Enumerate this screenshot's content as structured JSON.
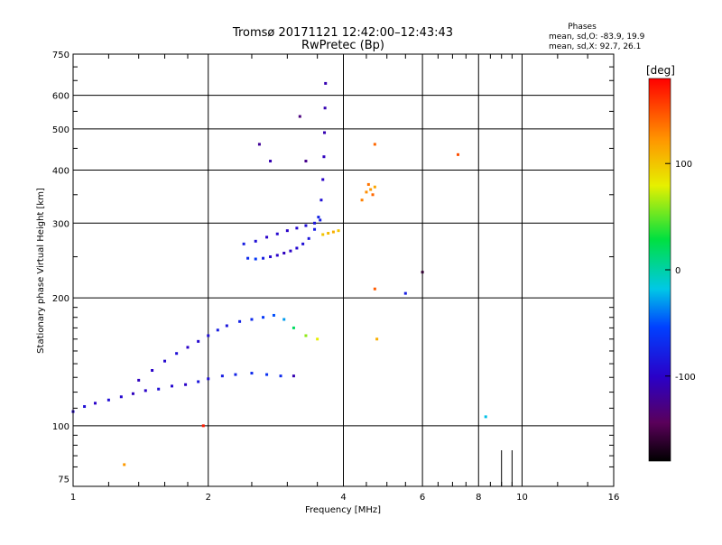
{
  "chart_data": {
    "type": "scatter",
    "title": "Tromsø 20171121 12:42:00–12:43:43",
    "subtitle": "RwPretec (Bp)",
    "xlabel": "Frequency [MHz]",
    "ylabel": "Stationary phase Virtual Height [km]",
    "x_scale": "log2",
    "y_scale": "log",
    "xlim": [
      1,
      16
    ],
    "ylim": [
      72,
      750
    ],
    "x_ticks": [
      1,
      2,
      4,
      6,
      8,
      10,
      16
    ],
    "x_ticklabels": [
      "1",
      "2",
      "4",
      "6",
      "8",
      "10",
      "16"
    ],
    "y_ticks": [
      75,
      100,
      200,
      300,
      400,
      500,
      600,
      750
    ],
    "y_ticklabels": [
      "75",
      "100",
      "200",
      "300",
      "400",
      "500",
      "600",
      "750"
    ],
    "grid": true,
    "phase_stats": {
      "heading": "Phases",
      "line_o": "mean, sd,O:  -83.9, 19.9",
      "line_x": "mean, sd,X:  92.7, 26.1"
    },
    "colorbar": {
      "label": "[deg]",
      "min": -180,
      "max": 180,
      "ticks": [
        100,
        0,
        -100
      ],
      "ticklabels": [
        "100",
        "0",
        "-100"
      ],
      "colormap": "rainbow: black-purple-blue-cyan-green-yellow-orange-red"
    },
    "traces": [
      {
        "name": "",
        "x": [
          1.0,
          1.06,
          1.12,
          1.2,
          1.28,
          1.36,
          1.45,
          1.55,
          1.66,
          1.78,
          1.9,
          2.0,
          2.15,
          2.3,
          2.5,
          2.7,
          2.9,
          3.1
        ],
        "y": [
          108,
          111,
          113,
          115,
          117,
          119,
          121,
          122,
          124,
          125,
          127,
          129,
          131,
          132,
          133,
          132,
          131,
          131
        ],
        "phase": [
          -95,
          -90,
          -100,
          -90,
          -95,
          -105,
          -100,
          -90,
          -95,
          -100,
          -85,
          -90,
          -80,
          -75,
          -70,
          -65,
          -70,
          -110
        ]
      },
      {
        "name": "",
        "x": [
          1.4,
          1.5,
          1.6,
          1.7,
          1.8,
          1.9,
          2.0,
          2.1,
          2.2,
          2.35,
          2.5,
          2.65,
          2.8,
          2.95,
          3.1,
          3.3,
          3.5
        ],
        "y": [
          128,
          135,
          142,
          148,
          153,
          158,
          163,
          168,
          172,
          176,
          178,
          180,
          182,
          178,
          170,
          163,
          160
        ],
        "phase": [
          -105,
          -100,
          -95,
          -90,
          -100,
          -95,
          -90,
          -80,
          -85,
          -75,
          -70,
          -60,
          -50,
          -30,
          20,
          60,
          80
        ]
      },
      {
        "name": "",
        "x": [
          2.45,
          2.55,
          2.65,
          2.75,
          2.85,
          2.95,
          3.05,
          3.15,
          3.25,
          3.35,
          3.45,
          3.52,
          3.57,
          3.6,
          3.62,
          3.63,
          3.64,
          3.65
        ],
        "y": [
          248,
          247,
          248,
          250,
          252,
          255,
          258,
          262,
          268,
          276,
          290,
          310,
          340,
          380,
          430,
          490,
          560,
          640
        ],
        "phase": [
          -70,
          -60,
          -80,
          -95,
          -100,
          -105,
          -100,
          -95,
          -90,
          -85,
          -80,
          -75,
          -90,
          -100,
          -105,
          -110,
          -110,
          -110
        ]
      },
      {
        "name": "",
        "x": [
          2.4,
          2.55,
          2.7,
          2.85,
          3.0,
          3.15,
          3.3,
          3.45,
          3.55
        ],
        "y": [
          268,
          272,
          278,
          283,
          288,
          292,
          296,
          300,
          305
        ],
        "phase": [
          -80,
          -90,
          -100,
          -95,
          -100,
          -95,
          -90,
          -85,
          -80
        ]
      },
      {
        "name": "",
        "x": [
          3.6,
          3.7,
          3.8,
          3.9,
          4.4,
          4.5,
          4.55,
          4.6,
          4.65,
          4.7
        ],
        "y": [
          282,
          284,
          286,
          288,
          340,
          355,
          370,
          360,
          350,
          365
        ],
        "phase": [
          100,
          105,
          110,
          100,
          130,
          125,
          135,
          120,
          140,
          115
        ]
      },
      {
        "name": "",
        "x": [
          1.3,
          1.95,
          2.6,
          2.75,
          3.2,
          3.3,
          4.7,
          4.7,
          4.75,
          5.5,
          6.0,
          7.2,
          8.3
        ],
        "y": [
          81,
          100,
          460,
          420,
          535,
          420,
          460,
          210,
          160,
          205,
          230,
          435,
          105
        ],
        "phase": [
          120,
          170,
          -120,
          -110,
          -130,
          -125,
          140,
          145,
          110,
          -80,
          -160,
          150,
          -20
        ]
      }
    ]
  }
}
